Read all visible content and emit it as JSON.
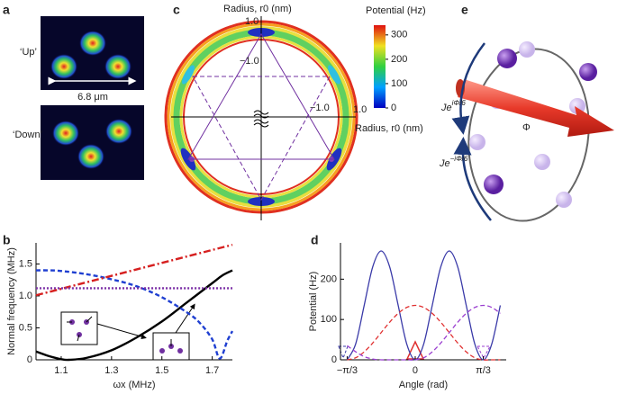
{
  "panels": {
    "a": {
      "label": "a",
      "up": "‘Up’",
      "down": "‘Down’",
      "scale": "6.8 μm"
    },
    "c": {
      "label": "c",
      "axis_top": "Radius, r0 (nm)",
      "axis_right": "Radius, r0 (nm)",
      "tick_top": "1.0",
      "tick_inner_y": "−1.0",
      "tick_inner_x": "−1.0",
      "tick_right": "1.0",
      "colorbar": {
        "title": "Potential (Hz)",
        "lim": [
          0,
          340
        ],
        "ticks": [
          0,
          100,
          200,
          300
        ]
      }
    },
    "e": {
      "label": "e",
      "hop_up": {
        "base": "Je",
        "sup": "iΦ/6"
      },
      "hop_down": {
        "base": "Je",
        "sup": "−iΦ/6"
      },
      "flux": "Φ"
    }
  },
  "chart_data": [
    {
      "type": "line",
      "panel": "b",
      "xlabel": "ωx (MHz)",
      "ylabel": "Normal frequency (MHz)",
      "xlim": [
        1.0,
        1.78
      ],
      "ylim": [
        0,
        1.83
      ],
      "xticks": [
        1.1,
        1.3,
        1.5,
        1.7
      ],
      "yticks": [
        0,
        0.5,
        {
          "value": 1,
          "label": "1.0"
        },
        1.5
      ],
      "series": [
        {
          "color": "#000000",
          "style": "solid",
          "x": [
            1.0,
            1.05,
            1.1,
            1.13,
            1.2,
            1.3,
            1.4,
            1.5,
            1.6,
            1.7,
            1.74,
            1.78
          ],
          "values": [
            0.13,
            0.06,
            0.01,
            0,
            0.03,
            0.15,
            0.35,
            0.6,
            0.9,
            1.2,
            1.32,
            1.4
          ]
        },
        {
          "color": "#1f3fd1",
          "style": "dashed",
          "x": [
            1.0,
            1.05,
            1.1,
            1.2,
            1.3,
            1.4,
            1.5,
            1.6,
            1.65,
            1.7,
            1.73,
            1.76,
            1.78
          ],
          "values": [
            1.4,
            1.4,
            1.39,
            1.34,
            1.26,
            1.15,
            0.98,
            0.74,
            0.58,
            0.32,
            0.02,
            0.3,
            0.45
          ]
        },
        {
          "color": "#d62020",
          "style": "dashdot",
          "x": [
            1.0,
            1.78
          ],
          "values": [
            1.01,
            1.8
          ]
        },
        {
          "color": "#7b2fa6",
          "style": "dotted",
          "x": [
            1.0,
            1.78
          ],
          "values": [
            1.12,
            1.12
          ]
        }
      ]
    },
    {
      "type": "line",
      "panel": "d",
      "xlabel": "Angle (rad)",
      "ylabel": "Potential (Hz)",
      "xlim": [
        -1.15,
        1.4
      ],
      "ylim": [
        0,
        290
      ],
      "xticks": [
        {
          "value": -1.047,
          "label": "−π/3"
        },
        0,
        {
          "value": 1.047,
          "label": "π/3"
        }
      ],
      "yticks": [
        0,
        100,
        200
      ],
      "series": [
        {
          "color": "#3a3aa8",
          "style": "solid",
          "x": [
            -1.047,
            -0.916,
            -0.785,
            -0.654,
            -0.524,
            -0.393,
            -0.262,
            -0.131,
            0,
            0.131,
            0.262,
            0.393,
            0.524,
            0.654,
            0.785,
            0.916,
            1.047,
            1.178,
            1.309
          ],
          "values": [
            0,
            39.5,
            135,
            230.5,
            270,
            230.5,
            135,
            39.5,
            0,
            39.5,
            135,
            230.5,
            270,
            230.5,
            135,
            39.5,
            0,
            39.5,
            135
          ]
        },
        {
          "color": "#e03030",
          "style": "dashed",
          "x": [
            -1.047,
            -0.916,
            -0.785,
            -0.654,
            -0.524,
            -0.393,
            -0.262,
            -0.131,
            0,
            0.131,
            0.262,
            0.393,
            0.524,
            0.654,
            0.785,
            0.916,
            1.047,
            1.178,
            1.309
          ],
          "values": [
            0,
            5.1,
            19.8,
            41.7,
            67.5,
            93.3,
            115.2,
            129.9,
            135,
            129.9,
            115.2,
            93.3,
            67.5,
            41.7,
            19.8,
            5.1,
            0,
            0,
            0
          ]
        },
        {
          "color": "#9b3fd0",
          "style": "dashed",
          "x": [
            -1.047,
            -0.916,
            -0.785,
            -0.654,
            -0.524,
            -0.393,
            -0.262,
            -0.131,
            0,
            0.131,
            0.262,
            0.393,
            0.524,
            0.654,
            0.785,
            0.916,
            1.047,
            1.178,
            1.309
          ],
          "values": [
            35,
            20,
            8,
            2,
            0,
            0,
            0,
            0,
            0,
            5.1,
            19.8,
            41.7,
            67.5,
            93.3,
            115.2,
            129.9,
            135,
            129.9,
            115.2
          ]
        }
      ]
    }
  ]
}
